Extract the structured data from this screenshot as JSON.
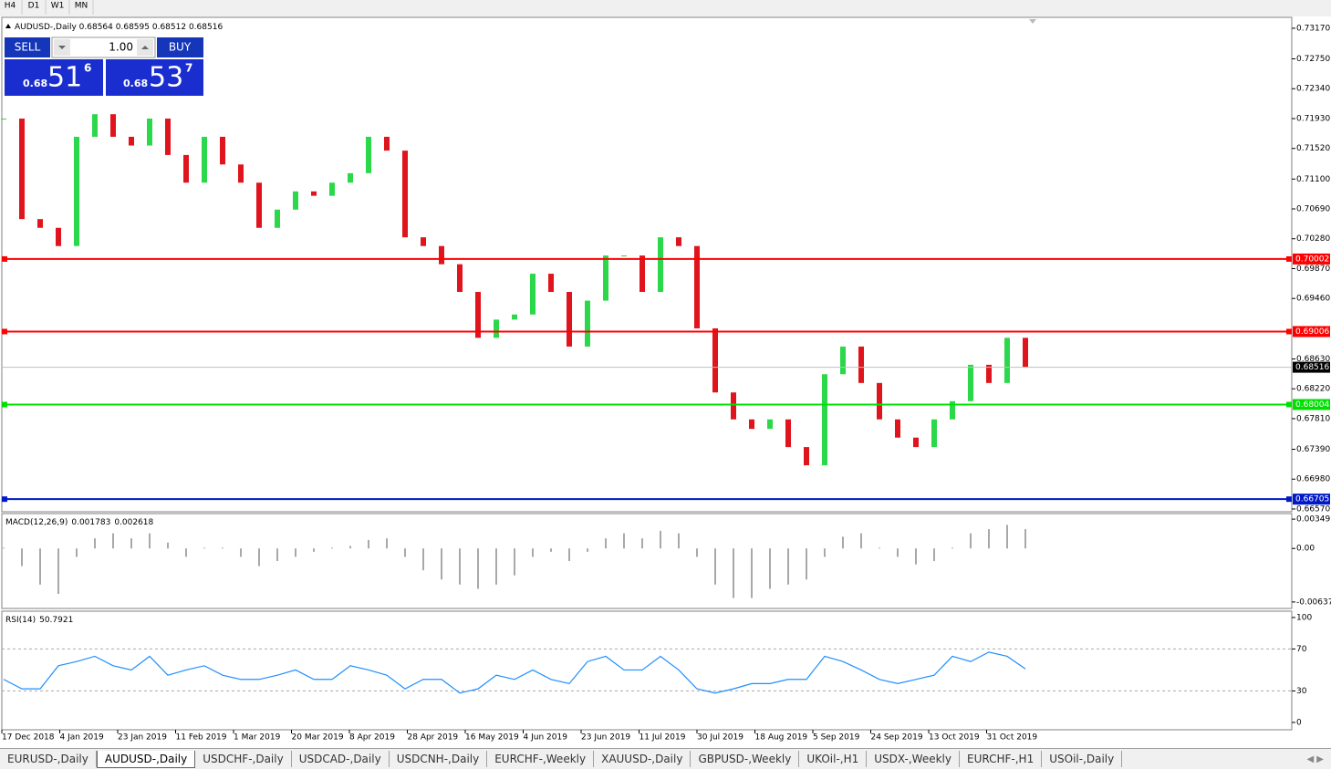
{
  "toolbar": {
    "timeframes": [
      "H4",
      "D1",
      "W1",
      "MN"
    ]
  },
  "trade_panel": {
    "sell_label": "SELL",
    "buy_label": "BUY",
    "lots": "1.00",
    "sell_price": {
      "big": "0.68",
      "main": "51",
      "frac": "6"
    },
    "buy_price": {
      "big": "0.68",
      "main": "53",
      "frac": "7"
    }
  },
  "chart_data": [
    {
      "type": "candlestick",
      "title": "AUDUSD-,Daily",
      "last_bar": {
        "open": 0.68564,
        "high": 0.68595,
        "low": 0.68512,
        "close": 0.68516
      },
      "values": [
        0.7193,
        0.7055,
        0.7043,
        0.7018,
        0.7168,
        0.7199,
        0.7168,
        0.7156,
        0.7193,
        0.7143,
        0.7105,
        0.7168,
        0.713,
        0.7105,
        0.7043,
        0.7068,
        0.7093,
        0.7087,
        0.7105,
        0.7118,
        0.7168,
        0.7149,
        0.703,
        0.7018,
        0.6993,
        0.6955,
        0.6892,
        0.6917,
        0.6924,
        0.698,
        0.6955,
        0.688,
        0.6943,
        0.7005,
        0.7005,
        0.6955,
        0.703,
        0.7018,
        0.6905,
        0.6817,
        0.678,
        0.6767,
        0.678,
        0.6742,
        0.6717,
        0.6842,
        0.688,
        0.683,
        0.678,
        0.6755,
        0.6742,
        0.678,
        0.6805,
        0.6855,
        0.683,
        0.6892,
        0.6852
      ],
      "up_color": "#2bd84a",
      "down_color": "#e0141c",
      "ylim": [
        0.66532,
        0.7332
      ],
      "yticks": [
        {
          "value": 0.7317,
          "label": "0.73170"
        },
        {
          "value": 0.7275,
          "label": "0.72750"
        },
        {
          "value": 0.7234,
          "label": "0.72340"
        },
        {
          "value": 0.7193,
          "label": "0.71930"
        },
        {
          "value": 0.7152,
          "label": "0.71520"
        },
        {
          "value": 0.711,
          "label": "0.71100"
        },
        {
          "value": 0.7069,
          "label": "0.70690"
        },
        {
          "value": 0.7028,
          "label": "0.70280"
        },
        {
          "value": 0.6987,
          "label": "0.69870"
        },
        {
          "value": 0.6946,
          "label": "0.69460"
        },
        {
          "value": 0.6863,
          "label": "0.68630"
        },
        {
          "value": 0.6822,
          "label": "0.68220"
        },
        {
          "value": 0.6781,
          "label": "0.67810"
        },
        {
          "value": 0.6739,
          "label": "0.67390"
        },
        {
          "value": 0.6698,
          "label": "0.66980"
        },
        {
          "value": 0.6657,
          "label": "0.66570"
        }
      ],
      "levels": [
        {
          "value": 0.70002,
          "color": "#ff0000"
        },
        {
          "value": 0.69006,
          "color": "#ff0000"
        },
        {
          "value": 0.68004,
          "color": "#00e000"
        },
        {
          "value": 0.66705,
          "color": "#0018c8"
        }
      ],
      "current_price": 0.68516,
      "date_labels": [
        "17 Dec 2018",
        "4 Jan 2019",
        "23 Jan 2019",
        "11 Feb 2019",
        "1 Mar 2019",
        "20 Mar 2019",
        "8 Apr 2019",
        "28 Apr 2019",
        "16 May 2019",
        "4 Jun 2019",
        "23 Jun 2019",
        "11 Jul 2019",
        "30 Jul 2019",
        "18 Aug 2019",
        "5 Sep 2019",
        "24 Sep 2019",
        "13 Oct 2019",
        "31 Oct 2019"
      ]
    },
    {
      "type": "bar",
      "title": "MACD(12,26,9)",
      "main": 0.001783,
      "signal": 0.002618,
      "color": "#a8a8a8",
      "values": [
        0.0001,
        -0.0021,
        -0.0043,
        -0.0054,
        -0.001,
        0.0012,
        0.0018,
        0.0012,
        0.0018,
        0.0007,
        -0.001,
        0.0001,
        0.0001,
        -0.001,
        -0.0021,
        -0.0015,
        -0.001,
        -0.0004,
        0.0001,
        0.0003,
        0.001,
        0.0012,
        -0.001,
        -0.0026,
        -0.0037,
        -0.0043,
        -0.0048,
        -0.0043,
        -0.0032,
        -0.001,
        -0.0004,
        -0.0015,
        -0.0004,
        0.0012,
        0.0018,
        0.0012,
        0.0021,
        0.0018,
        -0.001,
        -0.0043,
        -0.0059,
        -0.0059,
        -0.0048,
        -0.0043,
        -0.0037,
        -0.001,
        0.0014,
        0.0018,
        0.0001,
        -0.001,
        -0.0019,
        -0.0015,
        0.0001,
        0.0018,
        0.0023,
        0.0028,
        0.0023
      ],
      "ylim": [
        -0.00714,
        0.00415
      ],
      "yticks": [
        {
          "value": 0.00349,
          "label": "0.00349"
        },
        {
          "value": 0,
          "label": "0.00"
        },
        {
          "value": -0.00637,
          "label": "-0.00637"
        }
      ]
    },
    {
      "type": "line",
      "title": "RSI(14)",
      "current": 50.7921,
      "color": "#1e8fff",
      "values": [
        41,
        32,
        32,
        54,
        58,
        63,
        54,
        50,
        63,
        45,
        50,
        54,
        45,
        41,
        41,
        45,
        50,
        41,
        41,
        54,
        50,
        45,
        32,
        41,
        41,
        28,
        32,
        45,
        41,
        50,
        41,
        37,
        58,
        63,
        50,
        50,
        63,
        50,
        32,
        28,
        32,
        37,
        37,
        41,
        41,
        63,
        58,
        50,
        41,
        37,
        41,
        45,
        63,
        58,
        67,
        63,
        51
      ],
      "ylim": [
        -7,
        106
      ],
      "yticks": [
        100,
        70,
        30,
        0
      ],
      "levels": [
        70,
        30
      ]
    }
  ],
  "tabs": {
    "items": [
      "EURUSD-,Daily",
      "AUDUSD-,Daily",
      "USDCHF-,Daily",
      "USDCAD-,Daily",
      "USDCNH-,Daily",
      "EURCHF-,Weekly",
      "XAUUSD-,Daily",
      "GBPUSD-,Weekly",
      "UKOil-,H1",
      "USDX-,Weekly",
      "EURCHF-,H1",
      "USOil-,Daily"
    ],
    "active": 1
  }
}
